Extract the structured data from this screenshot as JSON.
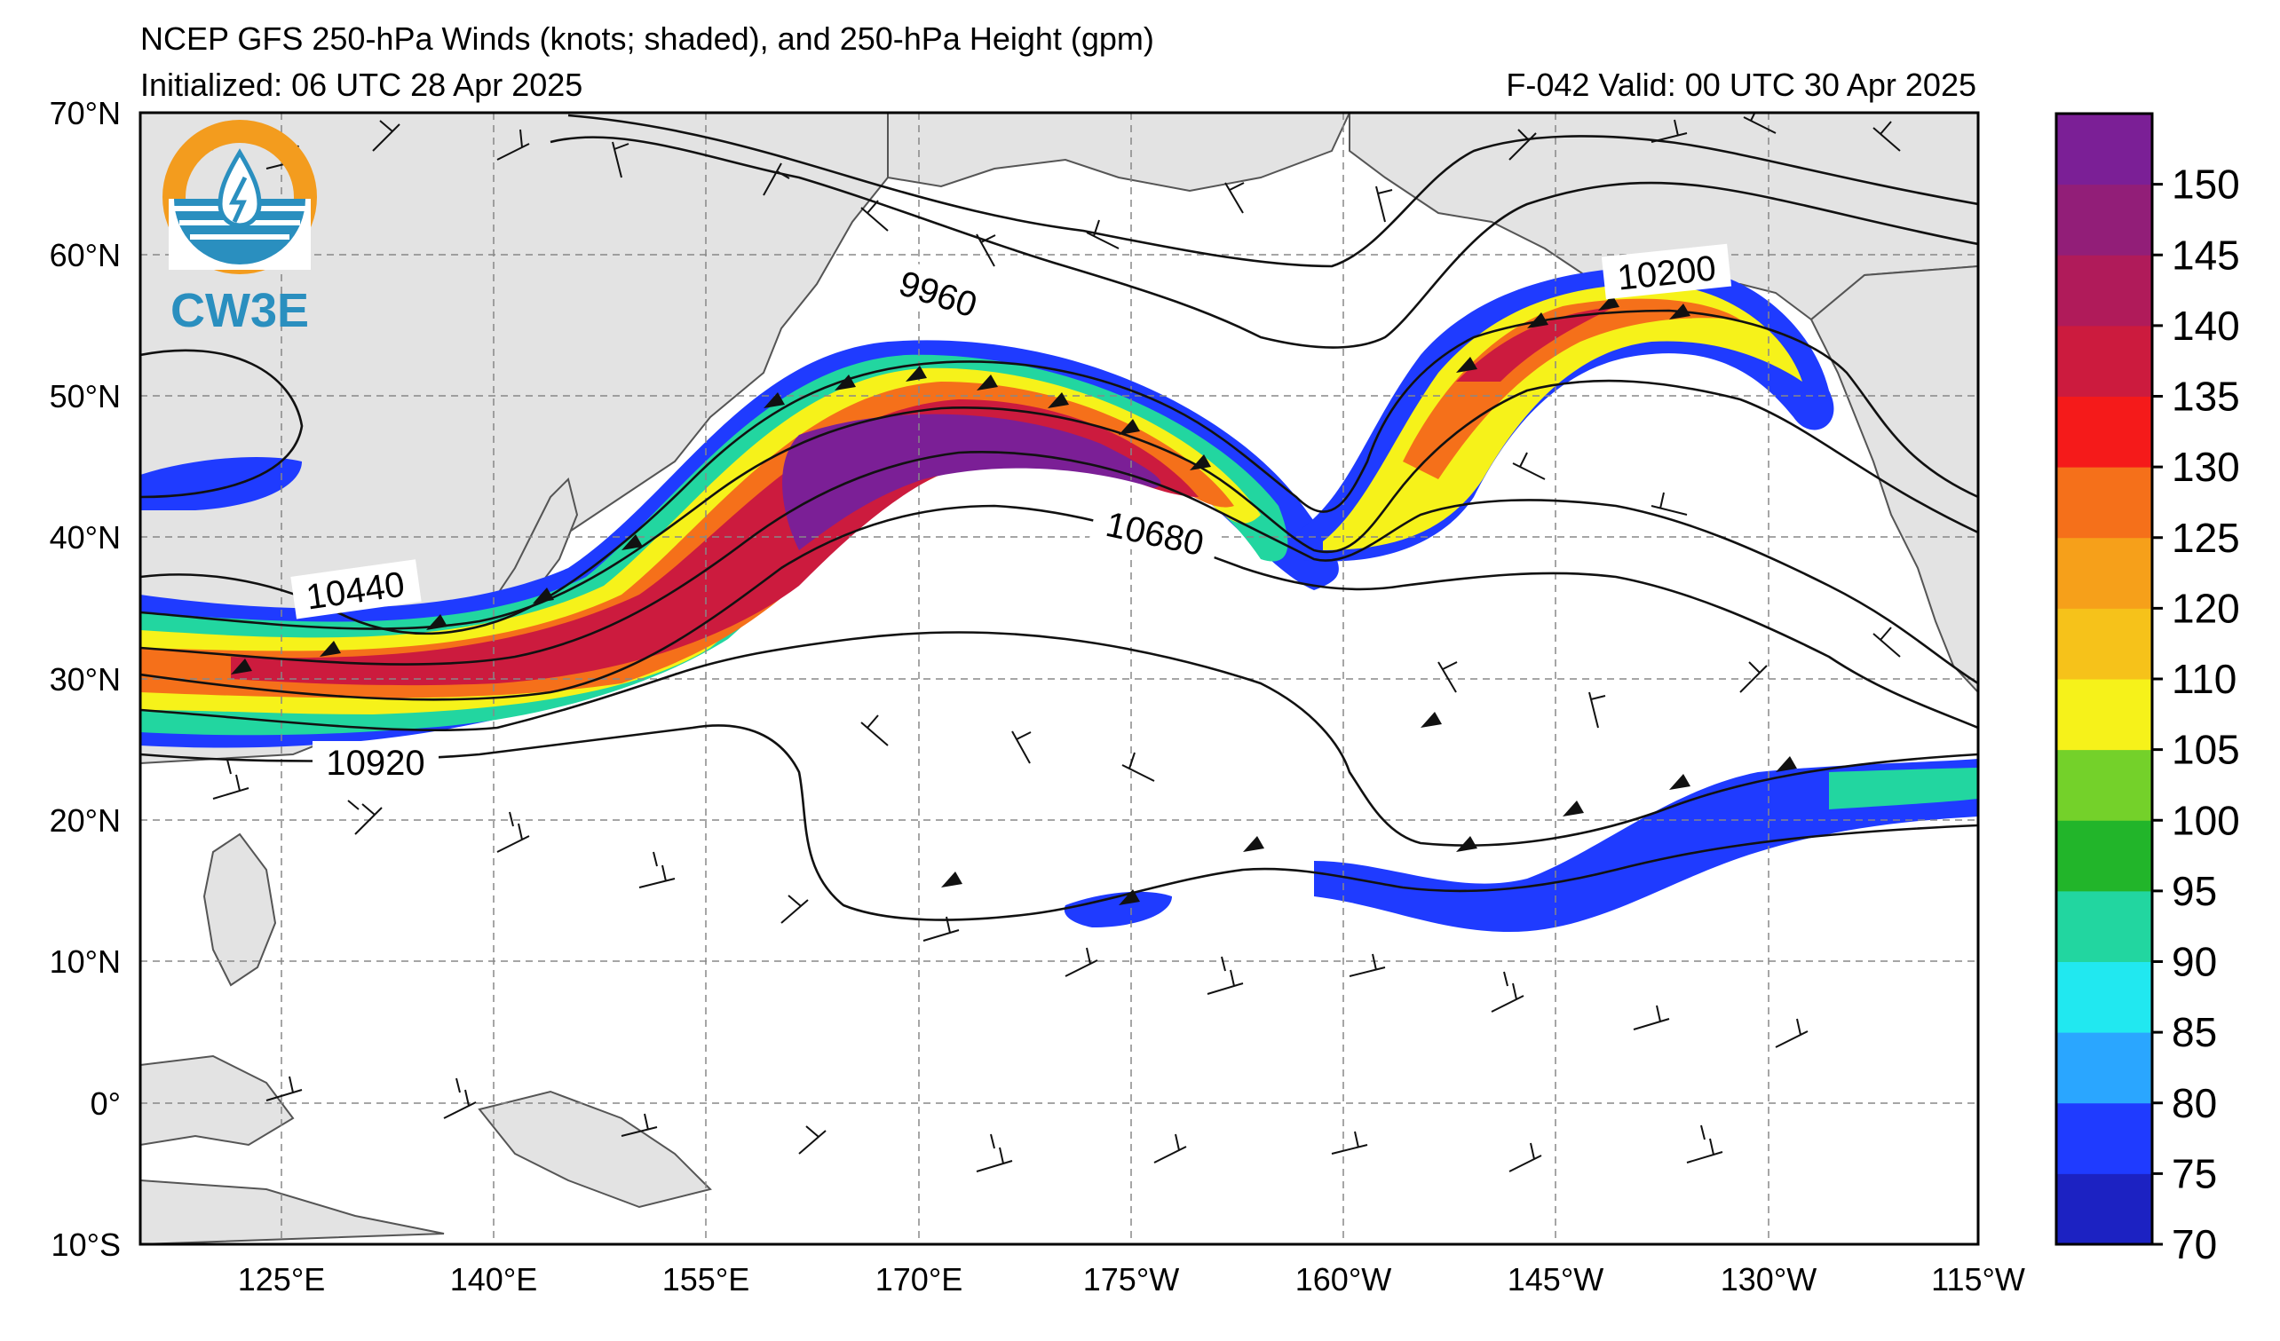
{
  "header": {
    "title": "NCEP GFS 250-hPa Winds (knots; shaded), and 250-hPa Height (gpm)",
    "initialized": "Initialized: 06 UTC 28 Apr 2025",
    "valid": "F-042  Valid: 00 UTC 30 Apr 2025"
  },
  "logo": {
    "text": "CW3E",
    "accent": "#f39c1e",
    "primary": "#2a8fbf"
  },
  "map": {
    "lat_labels": [
      "70°N",
      "60°N",
      "50°N",
      "40°N",
      "30°N",
      "20°N",
      "10°N",
      "0°",
      "10°S"
    ],
    "lon_labels": [
      "125°E",
      "140°E",
      "155°E",
      "170°E",
      "175°W",
      "160°W",
      "145°W",
      "130°W",
      "115°W"
    ],
    "contour_labels": [
      "9960",
      "10200",
      "10440",
      "10680",
      "10920"
    ],
    "land_color": "#e3e3e3",
    "coast_color": "#555555"
  },
  "colorbar": {
    "labels": [
      "70",
      "75",
      "80",
      "85",
      "90",
      "95",
      "100",
      "105",
      "110",
      "120",
      "125",
      "130",
      "135",
      "140",
      "145",
      "150"
    ],
    "colors": [
      "#1c22c2",
      "#1f3bff",
      "#2aa6ff",
      "#21e8f0",
      "#22d6a0",
      "#22b52a",
      "#74d12a",
      "#f6f21a",
      "#f6c21a",
      "#f6a01a",
      "#f5701a",
      "#f51a1a",
      "#cc1b3e",
      "#b01b5a",
      "#921e78",
      "#7b1f96"
    ]
  }
}
